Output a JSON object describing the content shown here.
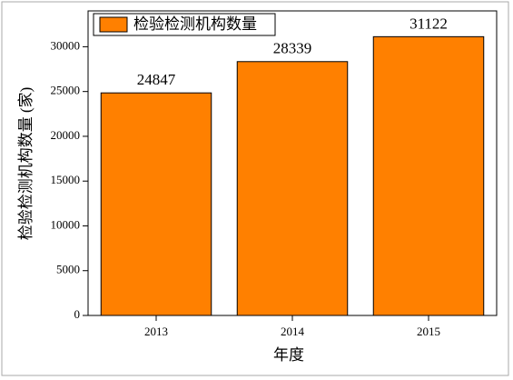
{
  "chart_data": {
    "type": "bar",
    "x_label": "年度",
    "y_label": "检验检测机构数量 (家)",
    "categories": [
      "2013",
      "2014",
      "2015"
    ],
    "series": [
      {
        "name": "检验检测机构数量",
        "color": "#ff8000",
        "values": [
          24847,
          28339,
          31122
        ]
      }
    ],
    "ylim": [
      0,
      34000
    ],
    "yticks": [
      0,
      5000,
      10000,
      15000,
      20000,
      25000,
      30000
    ],
    "legend": "top-left"
  }
}
